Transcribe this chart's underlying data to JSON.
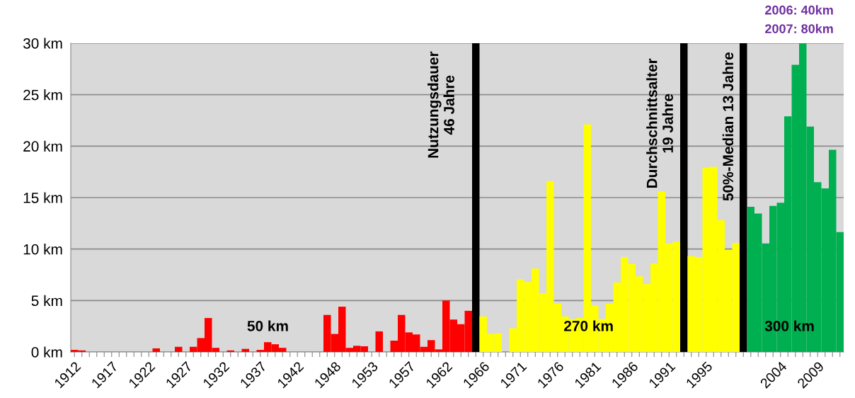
{
  "chart_data": {
    "type": "bar",
    "categories": [
      "1912",
      null,
      null,
      null,
      null,
      "1917",
      null,
      null,
      null,
      null,
      "1922",
      null,
      null,
      null,
      null,
      "1927",
      null,
      null,
      null,
      null,
      "1932",
      null,
      null,
      null,
      null,
      "1937",
      null,
      null,
      null,
      null,
      "1942",
      null,
      null,
      null,
      null,
      "1948",
      null,
      null,
      null,
      null,
      "1953",
      null,
      null,
      null,
      null,
      "1957",
      null,
      null,
      null,
      null,
      "1962",
      null,
      null,
      null,
      null,
      "1966",
      null,
      null,
      null,
      null,
      "1971",
      null,
      null,
      null,
      null,
      "1976",
      null,
      null,
      null,
      null,
      "1981",
      null,
      null,
      null,
      null,
      "1986",
      null,
      null,
      null,
      null,
      "1991",
      null,
      null,
      null,
      null,
      "1995",
      null,
      null,
      null,
      null,
      null,
      null,
      null,
      null,
      null,
      "2004",
      null,
      null,
      null,
      null,
      "2009",
      null,
      null,
      null
    ],
    "series": [
      {
        "color": "#ff0000",
        "values": [
          0.2,
          0.15,
          0,
          0,
          0,
          0,
          0,
          0,
          0,
          0,
          0,
          0.35,
          0,
          0,
          0.5,
          0,
          0.5,
          1.35,
          3.3,
          0.4,
          0,
          0.15,
          0,
          0.3,
          0,
          0.2,
          0.95,
          0.75,
          0.4,
          0,
          0,
          0,
          0,
          0,
          3.6,
          1.75,
          4.4,
          0.4,
          0.6,
          0.55,
          0,
          2.0,
          0,
          1.1,
          3.6,
          1.9,
          1.7,
          0.5,
          1.15,
          0.25,
          5.0,
          3.15,
          2.7,
          4.0,
          null,
          null,
          null,
          null,
          null,
          null,
          null,
          null,
          null,
          null,
          null,
          null,
          null,
          null,
          null,
          null,
          null,
          null,
          null,
          null,
          null,
          null,
          null,
          null,
          null,
          null,
          null,
          null,
          null,
          null,
          null,
          null,
          null,
          null,
          null,
          null,
          null,
          null,
          null,
          null,
          null,
          null,
          null,
          null,
          null,
          null,
          null,
          null,
          null,
          null
        ]
      },
      {
        "color": "#000000",
        "values": [
          null,
          null,
          null,
          null,
          null,
          null,
          null,
          null,
          null,
          null,
          null,
          null,
          null,
          null,
          null,
          null,
          null,
          null,
          null,
          null,
          null,
          null,
          null,
          null,
          null,
          null,
          null,
          null,
          null,
          null,
          null,
          null,
          null,
          null,
          null,
          null,
          null,
          null,
          null,
          null,
          null,
          null,
          null,
          null,
          null,
          null,
          null,
          null,
          null,
          null,
          null,
          null,
          null,
          null,
          30,
          null,
          null,
          null,
          null,
          null,
          null,
          null,
          null,
          null,
          null,
          null,
          null,
          null,
          null,
          null,
          null,
          null,
          null,
          null,
          null,
          null,
          null,
          null,
          null,
          null,
          null,
          null,
          30,
          null,
          null,
          null,
          null,
          null,
          null,
          null,
          30,
          null,
          null,
          null,
          null,
          null,
          null,
          null,
          null,
          null,
          null,
          null,
          null,
          null
        ]
      },
      {
        "color": "#ffff00",
        "values": [
          null,
          null,
          null,
          null,
          null,
          null,
          null,
          null,
          null,
          null,
          null,
          null,
          null,
          null,
          null,
          null,
          null,
          null,
          null,
          null,
          null,
          null,
          null,
          null,
          null,
          null,
          null,
          null,
          null,
          null,
          null,
          null,
          null,
          null,
          null,
          null,
          null,
          null,
          null,
          null,
          null,
          null,
          null,
          null,
          null,
          null,
          null,
          null,
          null,
          null,
          null,
          null,
          null,
          null,
          null,
          3.45,
          1.75,
          1.8,
          0,
          2.3,
          7.05,
          6.8,
          8.1,
          5.7,
          16.6,
          4.7,
          3.45,
          3.2,
          3.3,
          22.1,
          4.5,
          3.2,
          4.7,
          6.75,
          9.2,
          8.55,
          7.35,
          6.6,
          8.6,
          15.6,
          10.55,
          10.7,
          null,
          9.3,
          9.2,
          17.9,
          18.0,
          12.8,
          9.9,
          10.6,
          null,
          null,
          null,
          null,
          null,
          null,
          null,
          null,
          null,
          null,
          null,
          null,
          null,
          null
        ]
      },
      {
        "color": "#00b050",
        "values": [
          null,
          null,
          null,
          null,
          null,
          null,
          null,
          null,
          null,
          null,
          null,
          null,
          null,
          null,
          null,
          null,
          null,
          null,
          null,
          null,
          null,
          null,
          null,
          null,
          null,
          null,
          null,
          null,
          null,
          null,
          null,
          null,
          null,
          null,
          null,
          null,
          null,
          null,
          null,
          null,
          null,
          null,
          null,
          null,
          null,
          null,
          null,
          null,
          null,
          null,
          null,
          null,
          null,
          null,
          null,
          null,
          null,
          null,
          null,
          null,
          null,
          null,
          null,
          null,
          null,
          null,
          null,
          null,
          null,
          null,
          null,
          null,
          null,
          null,
          null,
          null,
          null,
          null,
          null,
          null,
          null,
          null,
          null,
          null,
          null,
          null,
          null,
          null,
          null,
          null,
          null,
          14.1,
          13.45,
          10.55,
          14.2,
          14.5,
          22.9,
          27.9,
          30,
          21.9,
          16.5,
          15.9,
          19.65,
          11.65
        ]
      }
    ],
    "ylim": [
      0,
      30
    ],
    "yticks": [
      {
        "value": 0,
        "label": "0 km"
      },
      {
        "value": 5,
        "label": "5 km"
      },
      {
        "value": 10,
        "label": "10 km"
      },
      {
        "value": 15,
        "label": "15 km"
      },
      {
        "value": 20,
        "label": "20 km"
      },
      {
        "value": 25,
        "label": "25 km"
      },
      {
        "value": 30,
        "label": "30 km"
      }
    ],
    "grid": "y",
    "legend": false,
    "annotations": [
      "50 km",
      "270 km",
      "300 km",
      "Nutzungsdauer\n46 Jahre",
      "Durchschnittsalter\n19 Jahre",
      "50%-Median 13 Jahre",
      "2006: 40km",
      "2007: 80km"
    ]
  }
}
